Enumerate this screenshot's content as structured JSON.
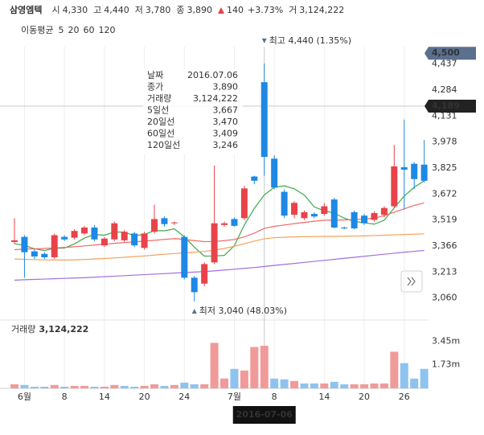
{
  "header": {
    "name": "삼영엠텍",
    "fields": [
      {
        "label": "시",
        "value": "4,330"
      },
      {
        "label": "고",
        "value": "4,440"
      },
      {
        "label": "저",
        "value": "3,780"
      },
      {
        "label": "종",
        "value": "3,890"
      }
    ],
    "change": "140",
    "change_pct": "+3.73%",
    "volume": {
      "label": "거",
      "value": "3,124,222"
    }
  },
  "tooltip": {
    "rows": [
      {
        "label": "날짜",
        "value": "2016.07.06",
        "color": "#333333"
      },
      {
        "label": "종가",
        "value": "3,890",
        "color": "#e8434a"
      },
      {
        "label": "거래량",
        "value": "3,124,222",
        "color": "#333333"
      },
      {
        "label": "5일선",
        "value": "3,667",
        "color": "#3daa4a"
      },
      {
        "label": "20일선",
        "value": "3,470",
        "color": "#e8434a"
      },
      {
        "label": "60일선",
        "value": "3,409",
        "color": "#f39c33"
      },
      {
        "label": "120일선",
        "value": "3,246",
        "color": "#a070e0"
      }
    ]
  },
  "crosshair": {
    "date": "2016-07-06",
    "price": {
      "value": 4189,
      "label": "4,189"
    }
  },
  "chart_data": {
    "type": "candlestick",
    "categories": [
      null,
      "6월",
      null,
      null,
      null,
      "8",
      null,
      null,
      null,
      "14",
      null,
      null,
      null,
      "20",
      null,
      null,
      null,
      "24",
      null,
      null,
      null,
      null,
      "7월",
      null,
      null,
      null,
      "8",
      null,
      null,
      null,
      null,
      "14",
      null,
      null,
      null,
      "20",
      null,
      null,
      null,
      "26",
      null,
      null
    ],
    "open": [
      3390,
      3420,
      3335,
      3320,
      3300,
      3420,
      3415,
      3440,
      3475,
      3370,
      3405,
      3400,
      3440,
      3355,
      3450,
      3530,
      3500,
      3420,
      3180,
      3145,
      3270,
      3490,
      3525,
      3530,
      3775,
      4330,
      3880,
      3685,
      3550,
      3530,
      3555,
      3555,
      3640,
      3475,
      3565,
      3545,
      3520,
      3550,
      3600,
      3830,
      3850,
      3845
    ],
    "high": [
      3530,
      3430,
      3350,
      3330,
      3440,
      3430,
      3465,
      3485,
      3490,
      3420,
      3510,
      3460,
      3450,
      3450,
      3610,
      3540,
      3510,
      3430,
      3190,
      3270,
      3840,
      3510,
      3535,
      3720,
      3780,
      4440,
      3900,
      3700,
      3630,
      3575,
      3565,
      3620,
      3650,
      3480,
      3575,
      3555,
      3570,
      3600,
      3960,
      4110,
      3860,
      3990
    ],
    "low": [
      3380,
      3180,
      3290,
      3290,
      3290,
      3395,
      3405,
      3430,
      3395,
      3360,
      3395,
      3390,
      3360,
      3345,
      3440,
      3480,
      3490,
      3170,
      3040,
      3130,
      3260,
      3480,
      3480,
      3520,
      3730,
      3780,
      3700,
      3530,
      3530,
      3520,
      3530,
      3545,
      3470,
      3465,
      3465,
      3490,
      3510,
      3535,
      3590,
      3580,
      3700,
      3740
    ],
    "close": [
      3400,
      3330,
      3305,
      3300,
      3430,
      3405,
      3455,
      3475,
      3405,
      3410,
      3500,
      3450,
      3370,
      3440,
      3525,
      3495,
      3505,
      3180,
      3095,
      3260,
      3500,
      3500,
      3485,
      3705,
      3750,
      3890,
      3710,
      3545,
      3620,
      3565,
      3540,
      3600,
      3475,
      3470,
      3470,
      3500,
      3560,
      3590,
      3835,
      3815,
      3760,
      3750
    ],
    "up_color": "#e8434a",
    "down_color": "#1e88e5",
    "ylim": [
      2950,
      4520
    ],
    "yticks": [
      {
        "value": 3060,
        "label": "3,060"
      },
      {
        "value": 3213,
        "label": "3,213"
      },
      {
        "value": 3366,
        "label": "3,366"
      },
      {
        "value": 3519,
        "label": "3,519"
      },
      {
        "value": 3672,
        "label": "3,672"
      },
      {
        "value": 3825,
        "label": "3,825"
      },
      {
        "value": 3978,
        "label": "3,978"
      },
      {
        "value": 4131,
        "label": "4,131"
      },
      {
        "value": 4284,
        "label": "4,284"
      },
      {
        "value": 4437,
        "label": "4,437"
      }
    ],
    "price_marker": {
      "value": 4500,
      "label": "4,500"
    },
    "max_annotation": "최고 4,440 (1.35%)",
    "min_annotation": "최저 3,040 (48.03%)",
    "moving_averages": {
      "title": "이동평균",
      "series": [
        {
          "name": "5",
          "color": "#3daa4a",
          "values": [
            3380,
            3370,
            3350,
            3340,
            3353,
            3354,
            3379,
            3413,
            3434,
            3430,
            3449,
            3448,
            3427,
            3434,
            3457,
            3456,
            3467,
            3420,
            3360,
            3307,
            3308,
            3311,
            3368,
            3490,
            3588,
            3667,
            3712,
            3720,
            3703,
            3666,
            3596,
            3574,
            3560,
            3530,
            3511,
            3503,
            3495,
            3518,
            3591,
            3660,
            3712,
            3750
          ]
        },
        {
          "name": "20",
          "color": "#ef6b6b",
          "values": [
            3345,
            3348,
            3350,
            3352,
            3355,
            3358,
            3362,
            3367,
            3372,
            3377,
            3382,
            3387,
            3391,
            3395,
            3400,
            3405,
            3410,
            3405,
            3398,
            3392,
            3393,
            3398,
            3405,
            3420,
            3442,
            3470,
            3482,
            3490,
            3498,
            3505,
            3512,
            3518,
            3518,
            3520,
            3522,
            3525,
            3530,
            3545,
            3565,
            3585,
            3605,
            3620
          ]
        },
        {
          "name": "60",
          "color": "#f5a25a",
          "values": [
            3290,
            3288,
            3286,
            3285,
            3284,
            3284,
            3285,
            3287,
            3290,
            3293,
            3296,
            3300,
            3304,
            3308,
            3313,
            3318,
            3322,
            3326,
            3330,
            3335,
            3342,
            3352,
            3365,
            3380,
            3395,
            3409,
            3415,
            3418,
            3420,
            3421,
            3422,
            3423,
            3423,
            3424,
            3425,
            3426,
            3428,
            3430,
            3432,
            3434,
            3436,
            3438
          ]
        },
        {
          "name": "120",
          "color": "#a070e0",
          "values": [
            3165,
            3168,
            3170,
            3172,
            3174,
            3176,
            3178,
            3180,
            3183,
            3186,
            3189,
            3192,
            3195,
            3198,
            3201,
            3204,
            3207,
            3210,
            3213,
            3216,
            3220,
            3225,
            3230,
            3235,
            3240,
            3246,
            3252,
            3258,
            3264,
            3270,
            3276,
            3282,
            3288,
            3294,
            3300,
            3306,
            3312,
            3318,
            3324,
            3330,
            3335,
            3340
          ]
        }
      ]
    },
    "volume": {
      "label": "거래량",
      "value_label": "3,124,222",
      "values": [
        0.3,
        0.25,
        0.12,
        0.12,
        0.25,
        0.12,
        0.18,
        0.18,
        0.12,
        0.12,
        0.25,
        0.18,
        0.12,
        0.18,
        0.3,
        0.18,
        0.25,
        0.42,
        0.3,
        0.3,
        3.34,
        0.72,
        1.43,
        1.31,
        3.04,
        3.124222,
        0.72,
        0.66,
        0.54,
        0.36,
        0.36,
        0.36,
        0.48,
        0.3,
        0.3,
        0.3,
        0.36,
        0.36,
        2.69,
        1.85,
        0.72,
        1.43
      ],
      "up_color": "#f19a9a",
      "down_color": "#8fc3ef",
      "ylim": [
        0,
        4.9
      ],
      "yticks": [
        {
          "value": 1.73,
          "label": "1.73m"
        },
        {
          "value": 3.45,
          "label": "3.45m"
        }
      ]
    }
  }
}
